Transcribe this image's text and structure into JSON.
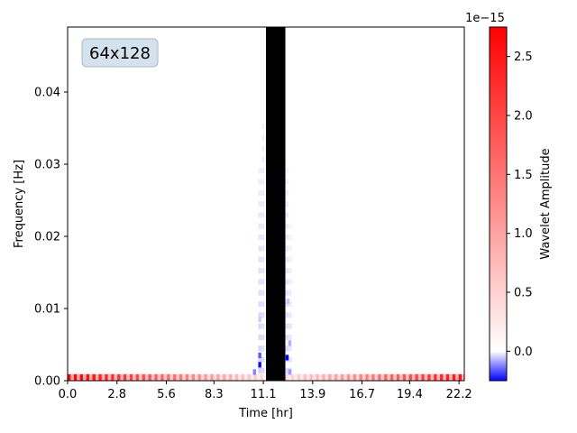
{
  "chart_data": {
    "type": "heatmap",
    "annotation": "64x128",
    "xlabel": "Time [hr]",
    "ylabel": "Frequency [Hz]",
    "xlim": [
      0.0,
      22.5
    ],
    "ylim": [
      0.0,
      0.049
    ],
    "x_ticks": [
      "0.0",
      "2.8",
      "5.6",
      "8.3",
      "11.1",
      "13.9",
      "16.7",
      "19.4",
      "22.2"
    ],
    "x_tick_values": [
      0.0,
      2.8,
      5.6,
      8.3,
      11.1,
      13.9,
      16.7,
      19.4,
      22.2
    ],
    "y_ticks": [
      "0.00",
      "0.01",
      "0.02",
      "0.03",
      "0.04"
    ],
    "y_tick_values": [
      0.0,
      0.01,
      0.02,
      0.03,
      0.04
    ],
    "grid": false,
    "colorbar": {
      "label": "Wavelet Amplitude",
      "multiplier": "1e−15",
      "min": -0.25,
      "max": 2.75,
      "ticks": [
        "0.0",
        "0.5",
        "1.0",
        "1.5",
        "2.0",
        "2.5"
      ],
      "tick_values": [
        0.0,
        0.5,
        1.0,
        1.5,
        2.0,
        2.5
      ],
      "colormap": "bwr"
    },
    "masked_band": {
      "x_start": 11.25,
      "x_end": 12.35,
      "color": "#000000"
    },
    "cell_width_hr": 0.176,
    "low_frequency_row": {
      "frequency_range": [
        0.0,
        0.0009
      ],
      "amplitude_pattern": "alternating strong/weak cells; strongest at both ends (~2.7), fading toward center (~0.3)"
    },
    "near_center_negative_cells": [
      {
        "time": 10.6,
        "frequency": 0.0012,
        "amplitude": -0.12
      },
      {
        "time": 10.9,
        "frequency": 0.0022,
        "amplitude": -0.24
      },
      {
        "time": 10.9,
        "frequency": 0.0035,
        "amplitude": -0.16
      },
      {
        "time": 12.45,
        "frequency": 0.0032,
        "amplitude": -0.25
      },
      {
        "time": 12.6,
        "frequency": 0.0012,
        "amplitude": -0.1
      },
      {
        "time": 12.6,
        "frequency": 0.0052,
        "amplitude": -0.08
      },
      {
        "time": 10.9,
        "frequency": 0.0085,
        "amplitude": -0.05
      },
      {
        "time": 12.5,
        "frequency": 0.011,
        "amplitude": -0.06
      }
    ]
  }
}
